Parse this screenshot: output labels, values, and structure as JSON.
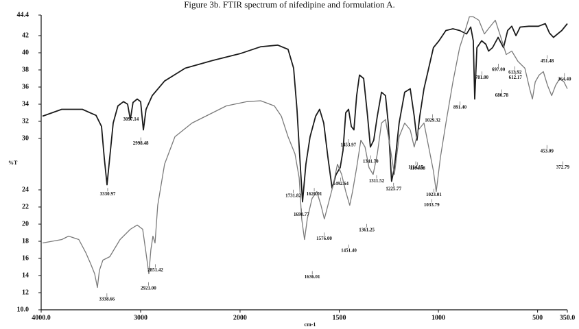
{
  "chart_data": {
    "type": "line",
    "title": "Figure 3b. FTIR spectrum of nifedipine and formulation A.",
    "y_label": "%T",
    "x_label": "cm-1",
    "xlim": [
      4000,
      350
    ],
    "ylim": [
      10,
      44.4
    ],
    "xticks": [
      {
        "value": 4000,
        "label": "4000.0"
      },
      3000,
      2000,
      1500,
      1000,
      500,
      {
        "value": 350,
        "label": "350.0"
      }
    ],
    "yticks": [
      {
        "value": 10,
        "label": "10.0"
      },
      12,
      14,
      16,
      18,
      20,
      22,
      24,
      30,
      32,
      34,
      36,
      38,
      40,
      42,
      {
        "value": 44.4,
        "label": "44.4"
      }
    ],
    "series": [
      {
        "color": "#1a1a1a",
        "x": [
          3986,
          3793,
          3586,
          3448,
          3393,
          3366,
          3338,
          3310,
          3276,
          3228,
          3172,
          3131,
          3103,
          3076,
          3034,
          3000,
          2972,
          2945,
          2883,
          2759,
          2552,
          2276,
          2000,
          1896,
          1810,
          1758,
          1730,
          1713,
          1699,
          1685,
          1668,
          1647,
          1619,
          1599,
          1578,
          1557,
          1536,
          1516,
          1495,
          1481,
          1467,
          1453,
          1439,
          1426,
          1412,
          1398,
          1377,
          1357,
          1343,
          1326,
          1308,
          1287,
          1267,
          1253,
          1236,
          1222,
          1198,
          1170,
          1142,
          1122,
          1108,
          1094,
          1073,
          1049,
          1025,
          997,
          962,
          927,
          893,
          858,
          837,
          824,
          817,
          806,
          782,
          761,
          747,
          727,
          699,
          672,
          651,
          630,
          609,
          588,
          544,
          496,
          461,
          440,
          420,
          399,
          378,
          350
        ],
        "values": [
          32.6,
          33.4,
          33.4,
          32.7,
          31.4,
          27.8,
          24.6,
          27.8,
          31.8,
          33.8,
          34.3,
          34.0,
          32.2,
          34.2,
          34.6,
          34.3,
          31.0,
          33.4,
          35.0,
          36.7,
          38.2,
          39.1,
          39.9,
          40.7,
          40.9,
          40.4,
          38.2,
          33.4,
          27.8,
          22.6,
          27.0,
          30.2,
          32.6,
          33.4,
          31.8,
          27.8,
          24.2,
          25.8,
          26.6,
          28.6,
          33.0,
          33.4,
          31.4,
          31.0,
          35.0,
          37.4,
          37.0,
          32.6,
          29.0,
          29.8,
          32.6,
          35.4,
          35.0,
          31.8,
          25.0,
          26.6,
          31.8,
          35.4,
          35.8,
          32.6,
          29.8,
          32.6,
          35.8,
          38.2,
          40.6,
          41.4,
          42.6,
          42.8,
          42.6,
          42.2,
          43.0,
          41.4,
          34.6,
          40.6,
          41.4,
          41.0,
          40.2,
          40.6,
          41.8,
          40.6,
          42.6,
          43.1,
          42.0,
          43.0,
          43.1,
          43.1,
          43.4,
          42.3,
          41.8,
          42.2,
          42.6,
          43.4
        ]
      },
      {
        "color": "#7a7a7a",
        "x": [
          3986,
          3793,
          3724,
          3621,
          3552,
          3503,
          3462,
          3434,
          3414,
          3379,
          3310,
          3207,
          3103,
          3034,
          2979,
          2945,
          2917,
          2897,
          2876,
          2855,
          2828,
          2759,
          2655,
          2483,
          2345,
          2138,
          1965,
          1896,
          1827,
          1792,
          1758,
          1723,
          1702,
          1689,
          1675,
          1661,
          1637,
          1613,
          1592,
          1575,
          1557,
          1530,
          1509,
          1488,
          1467,
          1447,
          1433,
          1412,
          1391,
          1370,
          1350,
          1329,
          1308,
          1287,
          1267,
          1246,
          1222,
          1198,
          1170,
          1142,
          1122,
          1101,
          1073,
          1049,
          1025,
          1011,
          990,
          962,
          927,
          893,
          865,
          844,
          824,
          796,
          768,
          741,
          713,
          685,
          658,
          630,
          599,
          564,
          540,
          526,
          512,
          492,
          471,
          450,
          429,
          409,
          388,
          367,
          350
        ],
        "values": [
          17.8,
          18.2,
          18.6,
          18.2,
          16.7,
          15.4,
          14.2,
          12.6,
          14.6,
          15.8,
          16.2,
          18.2,
          19.4,
          19.9,
          19.4,
          16.6,
          14.2,
          17.0,
          18.6,
          17.8,
          22.2,
          27.0,
          30.2,
          31.8,
          32.6,
          33.8,
          34.3,
          34.4,
          33.8,
          32.6,
          30.2,
          28.2,
          25.4,
          20.6,
          18.2,
          20.6,
          23.0,
          23.8,
          22.2,
          20.6,
          22.2,
          24.6,
          27.0,
          25.8,
          23.8,
          22.2,
          23.8,
          26.6,
          29.8,
          29.0,
          26.6,
          25.8,
          28.2,
          31.8,
          32.2,
          29.4,
          25.8,
          30.2,
          31.8,
          31.0,
          29.0,
          31.0,
          31.8,
          29.0,
          26.2,
          23.8,
          27.8,
          31.8,
          36.6,
          40.6,
          42.6,
          44.2,
          44.2,
          43.8,
          42.2,
          43.0,
          43.8,
          41.8,
          39.8,
          40.2,
          39.0,
          38.2,
          35.8,
          34.6,
          36.6,
          37.4,
          37.8,
          36.2,
          35.0,
          36.2,
          37.0,
          36.6,
          35.8
        ]
      }
    ],
    "annotations": [
      {
        "text": "3330.97",
        "x": 3330.97,
        "y": 23.5
      },
      {
        "text": "3097.14",
        "x": 3097.14,
        "y": 32.2
      },
      {
        "text": "2998.48",
        "x": 2998.48,
        "y": 29.4
      },
      {
        "text": "3338.66",
        "x": 3338.66,
        "y": 11.2
      },
      {
        "text": "2921.00",
        "x": 2921.0,
        "y": 12.5
      },
      {
        "text": "2851.42",
        "x": 2851.42,
        "y": 14.6
      },
      {
        "text": "1731.82",
        "x": 1731.82,
        "y": 23.3
      },
      {
        "text": "1690.77",
        "x": 1690.77,
        "y": 21.1
      },
      {
        "text": "1626.01",
        "x": 1626.01,
        "y": 23.5
      },
      {
        "text": "1492.64",
        "x": 1492.64,
        "y": 24.7
      },
      {
        "text": "1453.97",
        "x": 1453.97,
        "y": 29.2
      },
      {
        "text": "1341.70",
        "x": 1341.7,
        "y": 27.3
      },
      {
        "text": "1311.52",
        "x": 1311.52,
        "y": 25.0
      },
      {
        "text": "1225.77",
        "x": 1225.77,
        "y": 24.1
      },
      {
        "text": "1029.32",
        "x": 1029.32,
        "y": 32.1
      },
      {
        "text": "1114.15",
        "x": 1114.15,
        "y": 26.6
      },
      {
        "text": "1104.88",
        "x": 1104.88,
        "y": 26.5
      },
      {
        "text": "1023.01",
        "x": 1023.01,
        "y": 23.4
      },
      {
        "text": "1033.79",
        "x": 1033.79,
        "y": 22.2
      },
      {
        "text": "891.40",
        "x": 891.4,
        "y": 33.6
      },
      {
        "text": "781.00",
        "x": 781.0,
        "y": 37.1
      },
      {
        "text": "697.00",
        "x": 697.0,
        "y": 38.0
      },
      {
        "text": "680.78",
        "x": 680.78,
        "y": 35.0
      },
      {
        "text": "613.92",
        "x": 613.92,
        "y": 37.7
      },
      {
        "text": "612.17",
        "x": 612.17,
        "y": 37.1
      },
      {
        "text": "451.48",
        "x": 451.48,
        "y": 39.0
      },
      {
        "text": "364.40",
        "x": 364.4,
        "y": 36.9
      },
      {
        "text": "453.09",
        "x": 453.09,
        "y": 28.5
      },
      {
        "text": "372.79",
        "x": 372.79,
        "y": 26.6
      },
      {
        "text": "1576.00",
        "x": 1576.0,
        "y": 18.3
      },
      {
        "text": "1451.40",
        "x": 1451.4,
        "y": 16.9
      },
      {
        "text": "1361.25",
        "x": 1361.25,
        "y": 19.3
      },
      {
        "text": "1636.01",
        "x": 1636.01,
        "y": 13.8
      }
    ]
  }
}
